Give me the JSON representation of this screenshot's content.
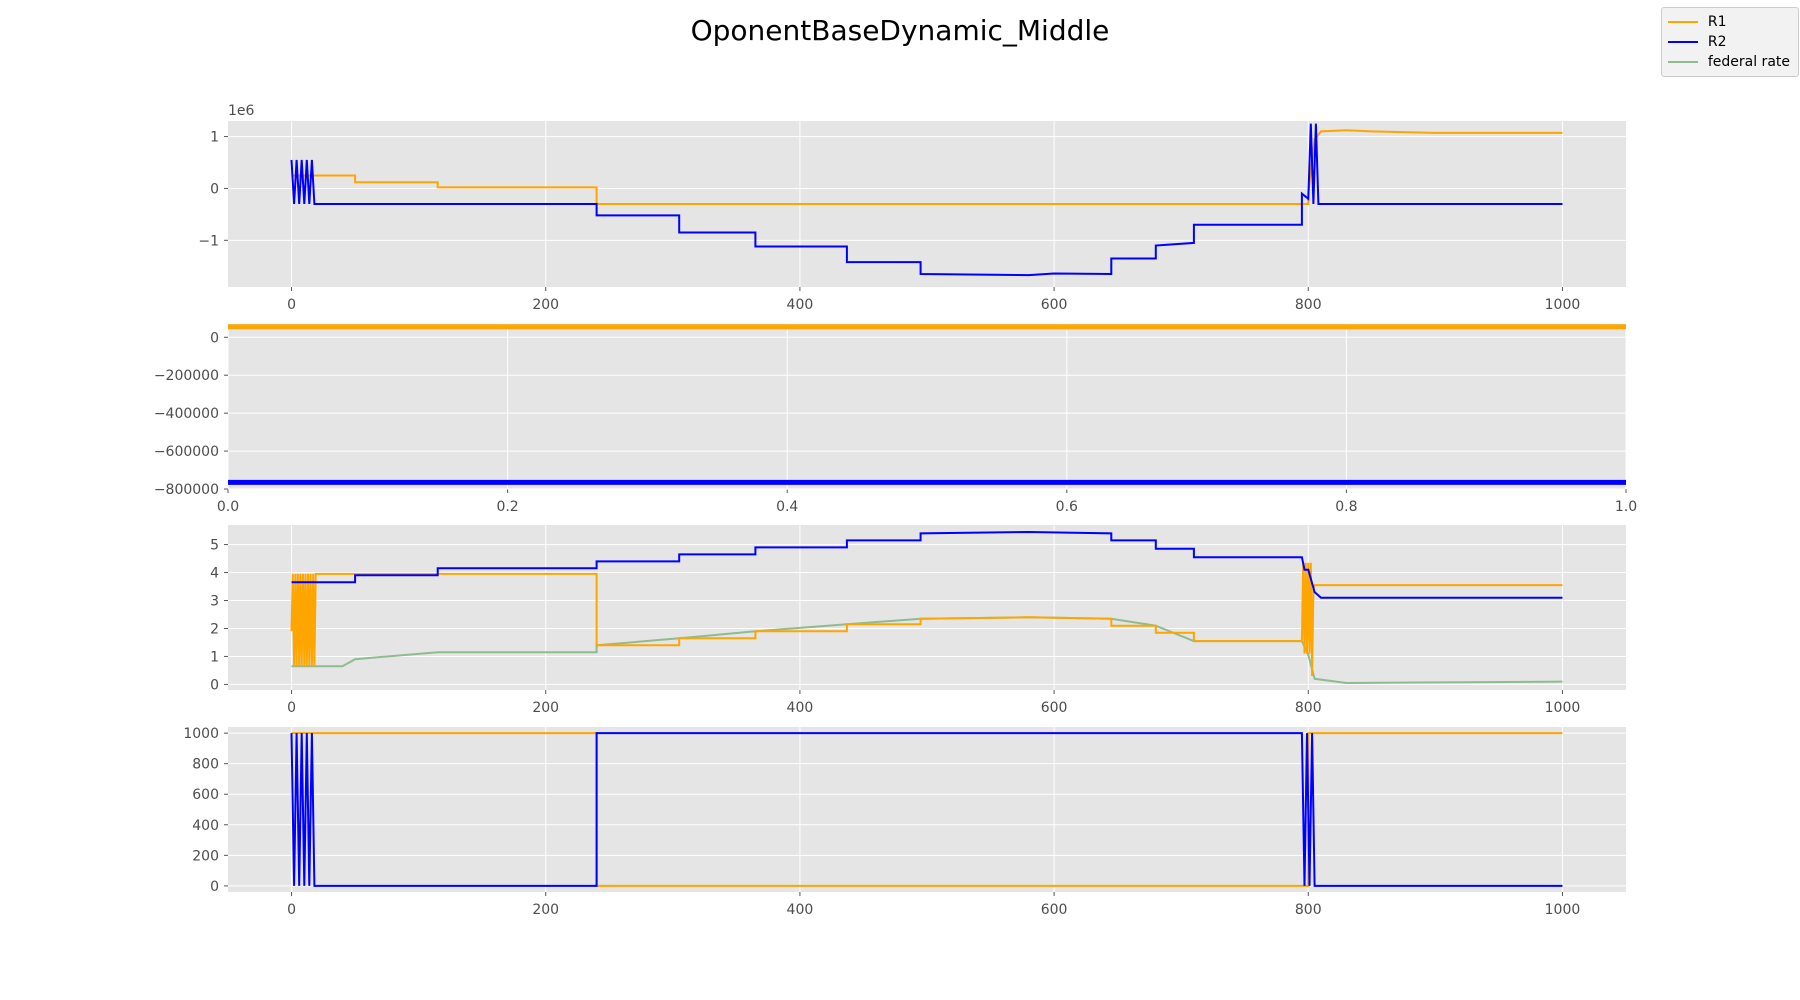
{
  "title": "OponentBaseDynamic_Middle",
  "legend": [
    {
      "label": "R1",
      "color": "#ffa500"
    },
    {
      "label": "R2",
      "color": "#0000ff"
    },
    {
      "label": "federal rate",
      "color": "#8fbc8f"
    }
  ],
  "chart_data": [
    {
      "type": "line",
      "xlim": [
        -50,
        1050
      ],
      "ylim": [
        -1900000,
        1300000
      ],
      "x_ticks": [
        0,
        200,
        400,
        600,
        800,
        1000
      ],
      "x_tick_labels": [
        "0",
        "200",
        "400",
        "600",
        "800",
        "1000"
      ],
      "y_ticks": [
        1000000,
        0,
        -1000000
      ],
      "y_tick_labels": [
        "1",
        "0",
        "−1"
      ],
      "offset_label": "1e6",
      "grid": true,
      "series": [
        {
          "name": "R1",
          "color": "#ffa500",
          "x": [
            0,
            50,
            50,
            115,
            115,
            240,
            240,
            800,
            800,
            805,
            810,
            830,
            850,
            900,
            1000
          ],
          "y": [
            250000,
            250000,
            120000,
            120000,
            20000,
            20000,
            -300000,
            -300000,
            -100000,
            950000,
            1100000,
            1120000,
            1100000,
            1070000,
            1070000
          ]
        },
        {
          "name": "R2",
          "color": "#0000ff",
          "x": [
            0,
            2,
            4,
            6,
            8,
            10,
            12,
            14,
            16,
            18,
            19,
            240,
            240,
            305,
            305,
            365,
            365,
            437,
            437,
            495,
            495,
            580,
            600,
            645,
            645,
            680,
            680,
            710,
            710,
            790,
            795,
            795,
            800,
            802,
            804,
            806,
            808,
            1000
          ],
          "y": [
            550000,
            -300000,
            550000,
            -300000,
            550000,
            -300000,
            550000,
            -300000,
            550000,
            -300000,
            -300000,
            -300000,
            -520000,
            -520000,
            -850000,
            -850000,
            -1120000,
            -1120000,
            -1420000,
            -1420000,
            -1650000,
            -1670000,
            -1640000,
            -1650000,
            -1350000,
            -1350000,
            -1100000,
            -1050000,
            -700000,
            -700000,
            -700000,
            -100000,
            -200000,
            1250000,
            -300000,
            1250000,
            -300000,
            -300000
          ]
        }
      ]
    },
    {
      "type": "line",
      "xlim": [
        0.0,
        1.0
      ],
      "ylim": [
        -800000,
        70000
      ],
      "x_ticks": [
        0.0,
        0.2,
        0.4,
        0.6,
        0.8,
        1.0
      ],
      "x_tick_labels": [
        "0.0",
        "0.2",
        "0.4",
        "0.6",
        "0.8",
        "1.0"
      ],
      "y_ticks": [
        0,
        -200000,
        -400000,
        -600000,
        -800000
      ],
      "y_tick_labels": [
        "0",
        "−200000",
        "−400000",
        "−600000",
        "−800000"
      ],
      "grid": true,
      "series": [
        {
          "name": "R1",
          "color": "#ffa500",
          "x": [
            0.0,
            1.0
          ],
          "y": [
            55000,
            55000
          ]
        },
        {
          "name": "R2",
          "color": "#0000ff",
          "x": [
            0.0,
            1.0
          ],
          "y": [
            -765000,
            -765000
          ]
        }
      ]
    },
    {
      "type": "line",
      "xlim": [
        -50,
        1050
      ],
      "ylim": [
        -0.2,
        5.7
      ],
      "x_ticks": [
        0,
        200,
        400,
        600,
        800,
        1000
      ],
      "x_tick_labels": [
        "0",
        "200",
        "400",
        "600",
        "800",
        "1000"
      ],
      "y_ticks": [
        0,
        1,
        2,
        3,
        4,
        5
      ],
      "y_tick_labels": [
        "0",
        "1",
        "2",
        "3",
        "4",
        "5"
      ],
      "grid": true,
      "series": [
        {
          "name": "federal rate",
          "color": "#8fbc8f",
          "x": [
            0,
            40,
            50,
            115,
            240,
            240,
            305,
            365,
            437,
            495,
            580,
            645,
            680,
            710,
            795,
            800,
            805,
            830,
            1000
          ],
          "y": [
            0.65,
            0.65,
            0.9,
            1.15,
            1.15,
            1.4,
            1.65,
            1.9,
            2.15,
            2.35,
            2.4,
            2.35,
            2.1,
            1.55,
            1.55,
            1.05,
            0.2,
            0.05,
            0.1
          ]
        },
        {
          "name": "R1",
          "color": "#ffa500",
          "x": [
            0,
            1,
            2,
            3,
            4,
            5,
            6,
            7,
            8,
            9,
            10,
            11,
            12,
            13,
            14,
            15,
            16,
            17,
            18,
            19,
            20,
            240,
            240,
            305,
            305,
            365,
            365,
            437,
            437,
            495,
            495,
            580,
            645,
            645,
            680,
            680,
            710,
            710,
            795,
            796,
            797,
            798,
            799,
            800,
            801,
            802,
            803,
            804,
            805,
            806,
            1000
          ],
          "y": [
            1.9,
            3.95,
            0.65,
            3.95,
            0.65,
            3.95,
            0.65,
            3.95,
            0.65,
            3.95,
            0.65,
            3.95,
            0.65,
            3.95,
            0.65,
            3.95,
            0.65,
            3.95,
            0.65,
            3.95,
            3.95,
            3.95,
            1.4,
            1.4,
            1.65,
            1.65,
            1.9,
            1.9,
            2.15,
            2.15,
            2.35,
            2.4,
            2.35,
            2.1,
            2.1,
            1.85,
            1.85,
            1.55,
            1.55,
            4.35,
            1.1,
            4.35,
            1.1,
            4.35,
            1.1,
            4.35,
            0.3,
            3.4,
            3.55,
            3.55,
            3.55
          ]
        },
        {
          "name": "R2",
          "color": "#0000ff",
          "x": [
            0,
            50,
            50,
            115,
            115,
            240,
            240,
            305,
            305,
            365,
            365,
            437,
            437,
            495,
            495,
            580,
            645,
            645,
            680,
            680,
            710,
            710,
            795,
            797,
            800,
            805,
            810,
            830,
            1000
          ],
          "y": [
            3.65,
            3.65,
            3.9,
            3.9,
            4.15,
            4.15,
            4.4,
            4.4,
            4.65,
            4.65,
            4.9,
            4.9,
            5.15,
            5.15,
            5.4,
            5.45,
            5.4,
            5.15,
            5.15,
            4.85,
            4.85,
            4.55,
            4.55,
            4.1,
            4.1,
            3.3,
            3.1,
            3.1,
            3.1
          ]
        }
      ]
    },
    {
      "type": "line",
      "xlim": [
        -50,
        1050
      ],
      "ylim": [
        -40,
        1040
      ],
      "x_ticks": [
        0,
        200,
        400,
        600,
        800,
        1000
      ],
      "x_tick_labels": [
        "0",
        "200",
        "400",
        "600",
        "800",
        "1000"
      ],
      "y_ticks": [
        0,
        200,
        400,
        600,
        800,
        1000
      ],
      "y_tick_labels": [
        "0",
        "200",
        "400",
        "600",
        "800",
        "1000"
      ],
      "grid": true,
      "series": [
        {
          "name": "R1",
          "color": "#ffa500",
          "x": [
            0,
            240,
            240,
            800,
            800,
            1000
          ],
          "y": [
            1000,
            1000,
            0,
            0,
            1000,
            1000
          ]
        },
        {
          "name": "R2",
          "color": "#0000ff",
          "x": [
            0,
            2,
            4,
            6,
            8,
            10,
            12,
            14,
            16,
            18,
            19,
            240,
            240,
            795,
            797,
            799,
            801,
            803,
            805,
            806,
            1000
          ],
          "y": [
            1000,
            0,
            1000,
            0,
            1000,
            0,
            1000,
            0,
            1000,
            0,
            0,
            0,
            1000,
            1000,
            0,
            1000,
            0,
            1000,
            0,
            0,
            0
          ]
        }
      ]
    }
  ]
}
